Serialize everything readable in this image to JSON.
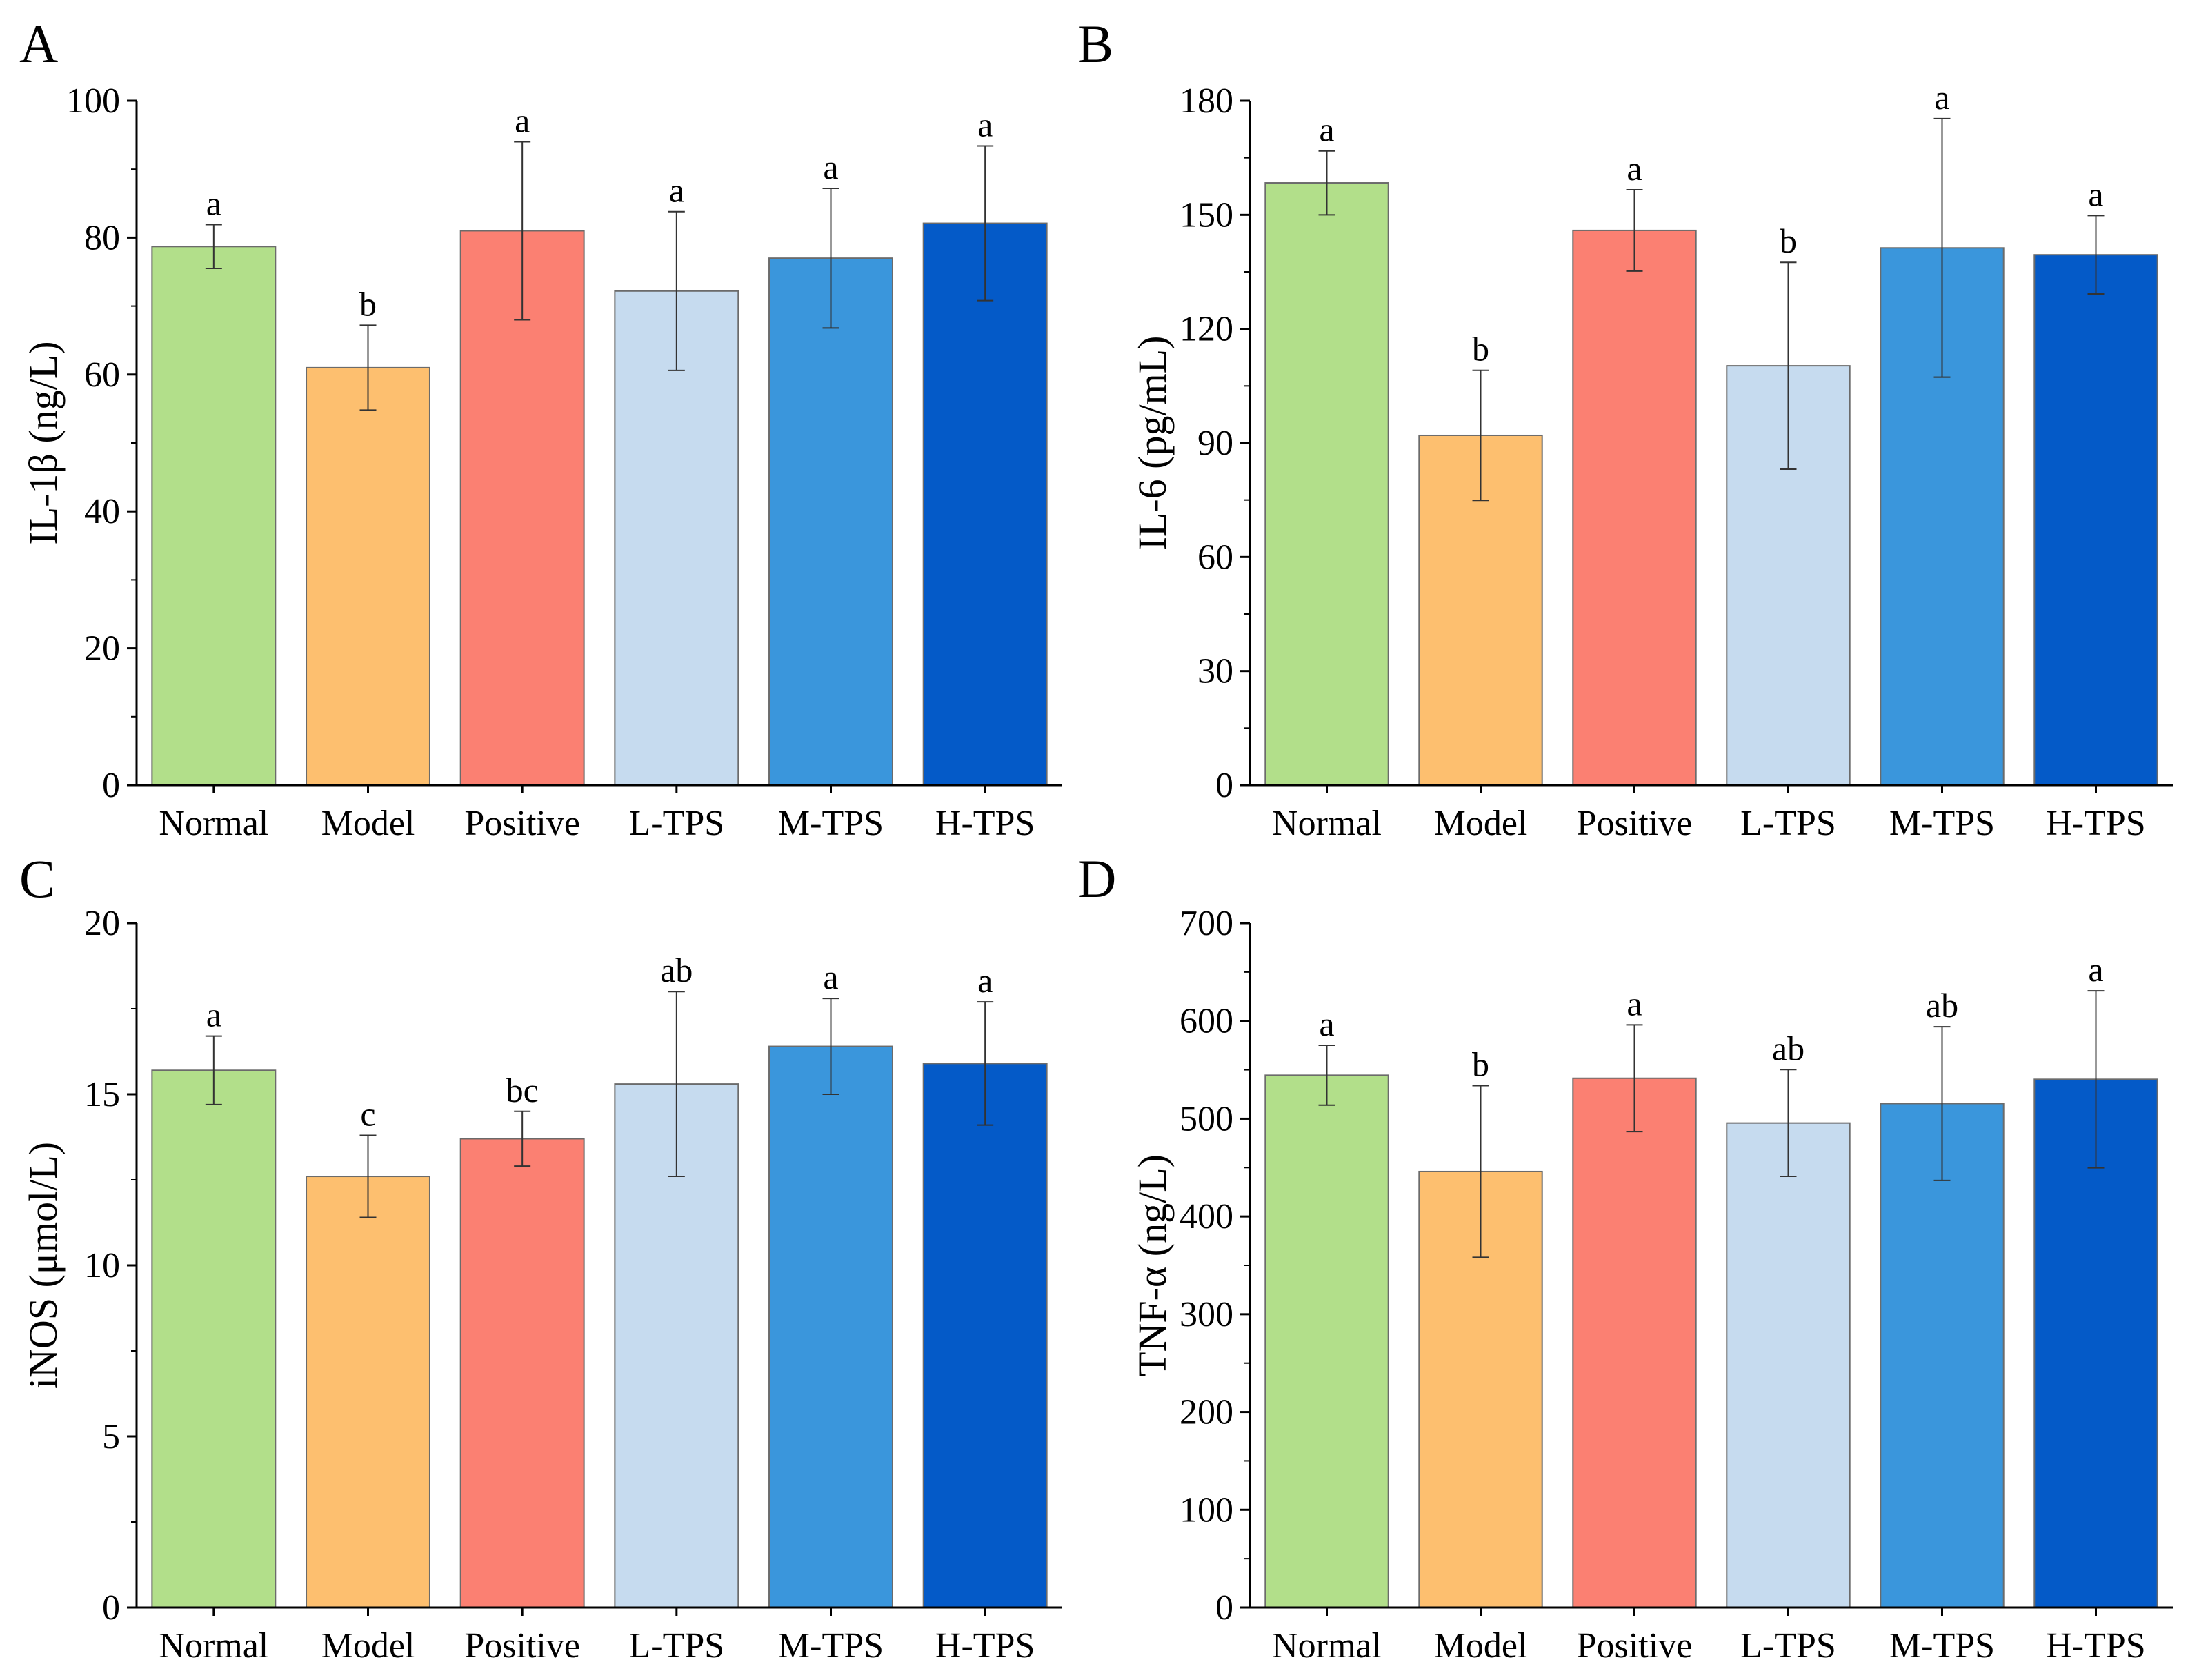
{
  "figure": {
    "bar_colors": [
      "#b2df8a",
      "#fdbf6f",
      "#fb8072",
      "#c6dbef",
      "#3a96dc",
      "#045ac8"
    ]
  },
  "chart_data": [
    {
      "type": "bar",
      "panel": "A",
      "title": "",
      "xlabel": "",
      "ylabel": "IL-1β (ng/L)",
      "categories": [
        "Normal",
        "Model",
        "Positive",
        "L-TPS",
        "M-TPS",
        "H-TPS"
      ],
      "values": [
        78.7,
        61.0,
        81.0,
        72.2,
        77.0,
        82.1
      ],
      "errors": [
        3.2,
        6.2,
        13.0,
        11.6,
        10.2,
        11.3
      ],
      "significance": [
        "a",
        "b",
        "a",
        "a",
        "a",
        "a"
      ],
      "ylim": [
        0,
        100
      ],
      "yticks": [
        0,
        20,
        40,
        60,
        80,
        100
      ],
      "grid": false
    },
    {
      "type": "bar",
      "panel": "B",
      "title": "",
      "xlabel": "",
      "ylabel": "IL-6 (pg/mL)",
      "categories": [
        "Normal",
        "Model",
        "Positive",
        "L-TPS",
        "M-TPS",
        "H-TPS"
      ],
      "values": [
        158.4,
        92.0,
        145.9,
        110.3,
        141.3,
        139.5
      ],
      "errors": [
        8.4,
        17.1,
        10.7,
        27.2,
        34.0,
        10.3
      ],
      "significance": [
        "a",
        "b",
        "a",
        "b",
        "a",
        "a"
      ],
      "ylim": [
        0,
        180
      ],
      "yticks": [
        0,
        30,
        60,
        90,
        120,
        150,
        180
      ],
      "grid": false
    },
    {
      "type": "bar",
      "panel": "C",
      "title": "",
      "xlabel": "",
      "ylabel": "iNOS (μmol/L)",
      "categories": [
        "Normal",
        "Model",
        "Positive",
        "L-TPS",
        "M-TPS",
        "H-TPS"
      ],
      "values": [
        15.7,
        12.6,
        13.7,
        15.3,
        16.4,
        15.9
      ],
      "errors": [
        1.0,
        1.2,
        0.8,
        2.7,
        1.4,
        1.8
      ],
      "significance": [
        "a",
        "c",
        "bc",
        "ab",
        "a",
        "a"
      ],
      "ylim": [
        0,
        20
      ],
      "yticks": [
        0,
        5,
        10,
        15,
        20
      ],
      "grid": false
    },
    {
      "type": "bar",
      "panel": "D",
      "title": "",
      "xlabel": "",
      "ylabel": "TNF-α (ng/L)",
      "categories": [
        "Normal",
        "Model",
        "Positive",
        "L-TPS",
        "M-TPS",
        "H-TPS"
      ],
      "values": [
        544.5,
        446.0,
        541.4,
        495.6,
        515.5,
        540.3
      ],
      "errors": [
        30.6,
        87.8,
        54.6,
        54.6,
        78.6,
        90.5
      ],
      "significance": [
        "a",
        "b",
        "a",
        "ab",
        "ab",
        "a"
      ],
      "ylim": [
        0,
        700
      ],
      "yticks": [
        0,
        100,
        200,
        300,
        400,
        500,
        600,
        700
      ],
      "grid": false
    }
  ]
}
